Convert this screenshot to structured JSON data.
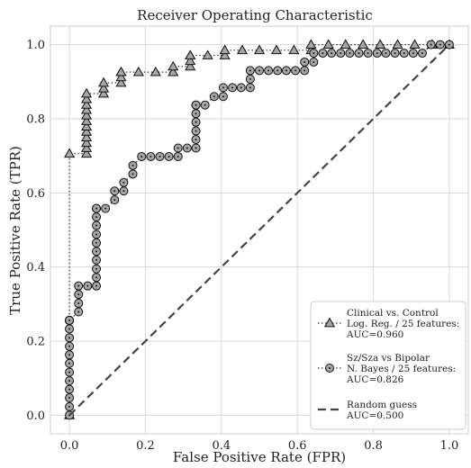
{
  "chart_data": {
    "type": "line",
    "title": "Receiver Operating Characteristic",
    "xlabel": "False Positive Rate (FPR)",
    "ylabel": "True Positive Rate (TPR)",
    "xlim": [
      -0.05,
      1.05
    ],
    "ylim": [
      -0.05,
      1.05
    ],
    "xticks": [
      "0.0",
      "0.2",
      "0.4",
      "0.6",
      "0.8",
      "1.0"
    ],
    "yticks": [
      "0.0",
      "0.2",
      "0.4",
      "0.6",
      "0.8",
      "1.0"
    ],
    "grid": true,
    "legend_position": "lower-right",
    "series": [
      {
        "name": "Clinical vs. Control\nLog. Reg. / 25 features:\nAUC=0.960",
        "marker": "triangle",
        "color": "#a6a6a6",
        "line_style": "dotted",
        "x": [
          0.0,
          0.0,
          0.045,
          0.045,
          0.045,
          0.045,
          0.045,
          0.045,
          0.045,
          0.045,
          0.045,
          0.045,
          0.045,
          0.045,
          0.09,
          0.09,
          0.09,
          0.136,
          0.136,
          0.136,
          0.136,
          0.182,
          0.227,
          0.273,
          0.273,
          0.318,
          0.318,
          0.318,
          0.318,
          0.364,
          0.409,
          0.409,
          0.455,
          0.5,
          0.545,
          0.591,
          0.636,
          0.636,
          0.682,
          0.727,
          0.773,
          0.818,
          0.864,
          0.909,
          0.955,
          1.0
        ],
        "y": [
          0.0,
          0.706,
          0.706,
          0.721,
          0.735,
          0.75,
          0.765,
          0.779,
          0.794,
          0.809,
          0.824,
          0.838,
          0.853,
          0.868,
          0.868,
          0.882,
          0.897,
          0.897,
          0.912,
          0.926,
          0.926,
          0.926,
          0.926,
          0.926,
          0.941,
          0.941,
          0.956,
          0.971,
          0.971,
          0.971,
          0.971,
          0.985,
          0.985,
          0.985,
          0.985,
          0.985,
          0.985,
          1.0,
          1.0,
          1.0,
          1.0,
          1.0,
          1.0,
          1.0,
          1.0,
          1.0
        ]
      },
      {
        "name": "Sz/Sza vs Bipolar\nN. Bayes / 25 features:\nAUC=0.826",
        "marker": "circle",
        "color": "#a6a6a6",
        "line_style": "dotted",
        "x": [
          0.0,
          0.0,
          0.0,
          0.0,
          0.0,
          0.0,
          0.0,
          0.0,
          0.0,
          0.0,
          0.0,
          0.0,
          0.0,
          0.0,
          0.0,
          0.0,
          0.0,
          0.0,
          0.0,
          0.024,
          0.024,
          0.024,
          0.024,
          0.048,
          0.071,
          0.071,
          0.071,
          0.071,
          0.071,
          0.071,
          0.071,
          0.071,
          0.071,
          0.071,
          0.071,
          0.071,
          0.095,
          0.119,
          0.119,
          0.143,
          0.143,
          0.167,
          0.167,
          0.19,
          0.214,
          0.238,
          0.262,
          0.286,
          0.286,
          0.31,
          0.333,
          0.333,
          0.333,
          0.333,
          0.333,
          0.333,
          0.333,
          0.333,
          0.357,
          0.381,
          0.405,
          0.405,
          0.429,
          0.452,
          0.476,
          0.476,
          0.476,
          0.5,
          0.524,
          0.548,
          0.571,
          0.595,
          0.619,
          0.619,
          0.643,
          0.643,
          0.667,
          0.69,
          0.714,
          0.738,
          0.762,
          0.786,
          0.81,
          0.833,
          0.857,
          0.881,
          0.905,
          0.929,
          0.952,
          0.976,
          1.0
        ],
        "y": [
          0.0,
          0.023,
          0.047,
          0.07,
          0.093,
          0.116,
          0.14,
          0.163,
          0.186,
          0.209,
          0.233,
          0.256,
          0.256,
          0.256,
          0.256,
          0.256,
          0.256,
          0.256,
          0.256,
          0.279,
          0.302,
          0.326,
          0.349,
          0.349,
          0.349,
          0.372,
          0.395,
          0.419,
          0.442,
          0.465,
          0.488,
          0.512,
          0.535,
          0.558,
          0.558,
          0.558,
          0.558,
          0.581,
          0.605,
          0.605,
          0.628,
          0.651,
          0.674,
          0.698,
          0.698,
          0.698,
          0.698,
          0.698,
          0.721,
          0.721,
          0.721,
          0.744,
          0.767,
          0.791,
          0.814,
          0.837,
          0.837,
          0.837,
          0.837,
          0.86,
          0.86,
          0.884,
          0.884,
          0.884,
          0.884,
          0.907,
          0.93,
          0.93,
          0.93,
          0.93,
          0.93,
          0.93,
          0.93,
          0.953,
          0.953,
          0.977,
          0.977,
          0.977,
          0.977,
          0.977,
          0.977,
          0.977,
          0.977,
          0.977,
          0.977,
          0.977,
          0.977,
          0.977,
          1.0,
          1.0,
          1.0
        ]
      },
      {
        "name": "Random guess\nAUC=0.500",
        "marker": "none",
        "color": "#444444",
        "line_style": "dashed",
        "x": [
          0.0,
          1.0
        ],
        "y": [
          0.0,
          1.0
        ]
      }
    ]
  }
}
